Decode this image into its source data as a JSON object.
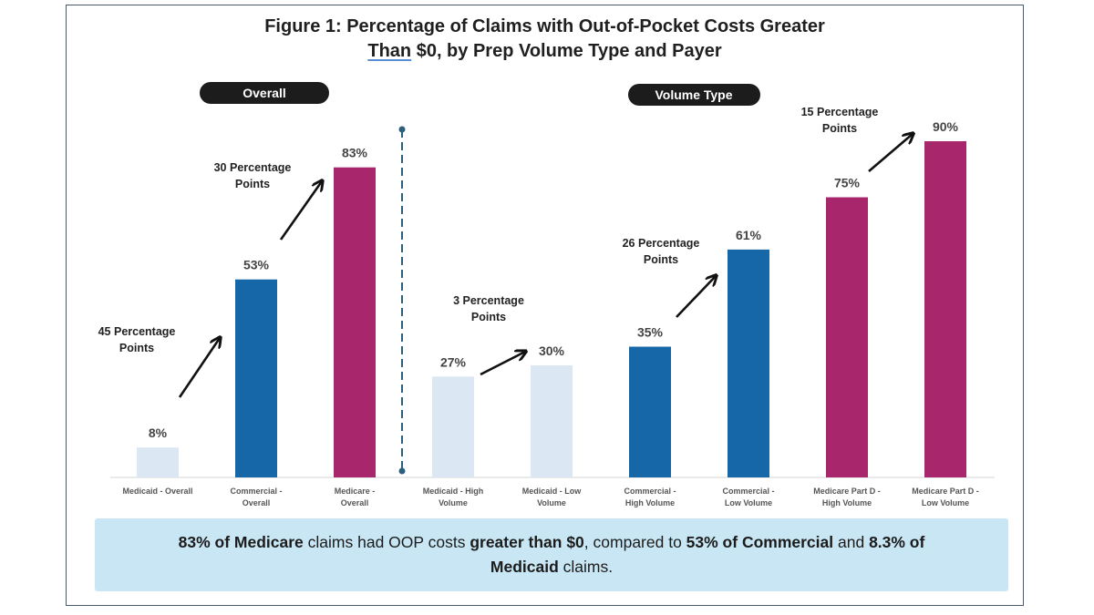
{
  "title": {
    "line1": "Figure 1: Percentage of Claims with Out-of-Pocket Costs Greater",
    "line2_underlined": "Than",
    "line2_rest": " $0, by Prep Volume Type and Payer"
  },
  "chart_data": {
    "type": "bar",
    "title": "Figure 1: Percentage of Claims with Out-of-Pocket Costs Greater Than $0, by Prep Volume Type and Payer",
    "ylim": [
      0,
      100
    ],
    "unit": "%",
    "grid": false,
    "groups": [
      "Overall",
      "Volume Type"
    ],
    "categories": [
      {
        "label_l1": "Medicaid - Overall",
        "label_l2": "",
        "value": 8,
        "label": "8%",
        "group": "Overall",
        "payer": "Medicaid"
      },
      {
        "label_l1": "Commercial -",
        "label_l2": "Overall",
        "value": 53,
        "label": "53%",
        "group": "Overall",
        "payer": "Commercial"
      },
      {
        "label_l1": "Medicare -",
        "label_l2": "Overall",
        "value": 83,
        "label": "83%",
        "group": "Overall",
        "payer": "Medicare"
      },
      {
        "label_l1": "Medicaid - High",
        "label_l2": "Volume",
        "value": 27,
        "label": "27%",
        "group": "Volume Type",
        "payer": "Medicaid"
      },
      {
        "label_l1": "Medicaid - Low",
        "label_l2": "Volume",
        "value": 30,
        "label": "30%",
        "group": "Volume Type",
        "payer": "Medicaid"
      },
      {
        "label_l1": "Commercial -",
        "label_l2": "High Volume",
        "value": 35,
        "label": "35%",
        "group": "Volume Type",
        "payer": "Commercial"
      },
      {
        "label_l1": "Commercial -",
        "label_l2": "Low Volume",
        "value": 61,
        "label": "61%",
        "group": "Volume Type",
        "payer": "Commercial"
      },
      {
        "label_l1": "Medicare Part D -",
        "label_l2": "High Volume",
        "value": 75,
        "label": "75%",
        "group": "Volume Type",
        "payer": "Medicare"
      },
      {
        "label_l1": "Medicare Part D -",
        "label_l2": "Low Volume",
        "value": 90,
        "label": "90%",
        "group": "Volume Type",
        "payer": "Medicare"
      }
    ],
    "colors": {
      "Medicaid": "#dbe8f4",
      "Commercial": "#1667a8",
      "Medicare": "#a8266b"
    },
    "annotations": [
      {
        "line1": "45 Percentage",
        "line2": "Points",
        "from_bar": 0,
        "to_bar": 1
      },
      {
        "line1": "30 Percentage",
        "line2": "Points",
        "from_bar": 1,
        "to_bar": 2
      },
      {
        "line1": "3 Percentage",
        "line2": "Points",
        "from_bar": 3,
        "to_bar": 4
      },
      {
        "line1": "26 Percentage",
        "line2": "Points",
        "from_bar": 5,
        "to_bar": 6
      },
      {
        "line1": "15 Percentage",
        "line2": "Points",
        "from_bar": 7,
        "to_bar": 8
      }
    ]
  },
  "callout": {
    "s1": "83% of Medicare",
    "s2": " claims had OOP costs ",
    "s3": "greater than $0",
    "s4": ", compared to ",
    "s5": "53% of Commercial",
    "s6": " and ",
    "s7": "8.3% of",
    "s8": "Medicaid",
    "s9": " claims."
  },
  "colors": {
    "pill": "#1c1c1c",
    "divider": "#2c5f7d",
    "arrow": "#111111"
  }
}
